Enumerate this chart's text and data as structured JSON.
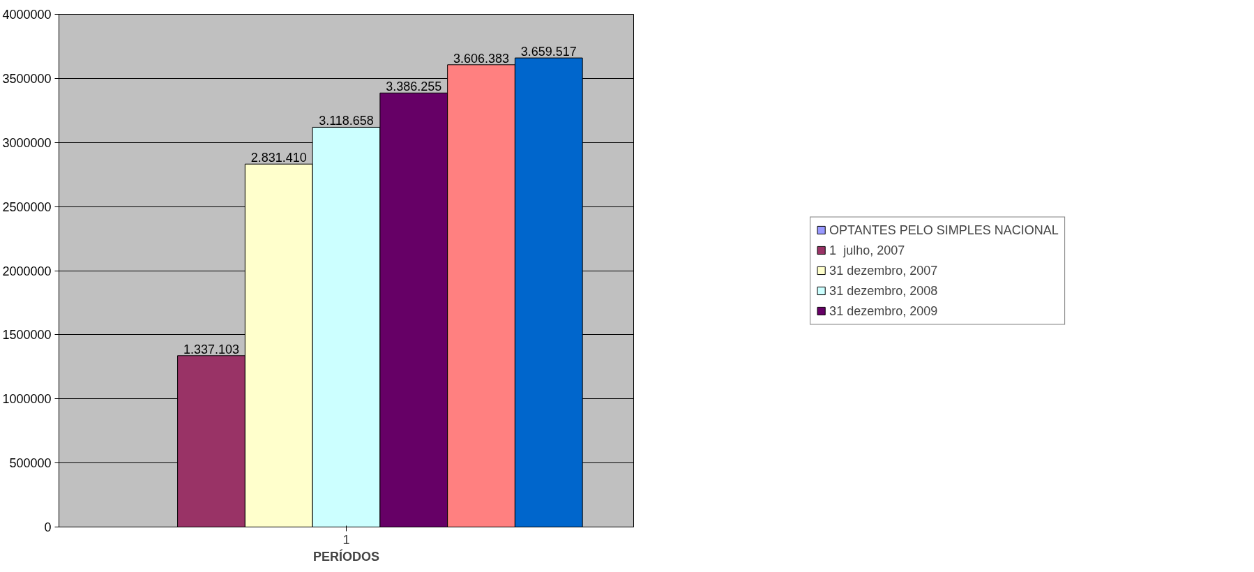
{
  "chart_data": {
    "type": "bar",
    "xlabel": "PERÍODOS",
    "categories": [
      "1"
    ],
    "series": [
      {
        "name": "OPTANTES PELO SIMPLES NACIONAL",
        "color": "#9999ff",
        "values": [
          null
        ],
        "value_labels": [
          null
        ]
      },
      {
        "name": "1  julho, 2007",
        "color": "#993366",
        "values": [
          1337103
        ],
        "value_labels": [
          "1.337.103"
        ]
      },
      {
        "name": "31 dezembro, 2007",
        "color": "#ffffcc",
        "values": [
          2831410
        ],
        "value_labels": [
          "2.831.410"
        ]
      },
      {
        "name": "31 dezembro, 2008",
        "color": "#ccffff",
        "values": [
          3118658
        ],
        "value_labels": [
          "3.118.658"
        ]
      },
      {
        "name": "31 dezembro, 2009",
        "color": "#660066",
        "values": [
          3386255
        ],
        "value_labels": [
          "3.386.255"
        ]
      },
      {
        "color": "#ff8080",
        "values": [
          3606383
        ],
        "value_labels": [
          "3.606.383"
        ]
      },
      {
        "color": "#0066cc",
        "values": [
          3659517
        ],
        "value_labels": [
          "3.659.517"
        ]
      }
    ],
    "ylim": [
      0,
      4000000
    ],
    "yticks": [
      0,
      500000,
      1000000,
      1500000,
      2000000,
      2500000,
      3000000,
      3500000,
      4000000
    ],
    "grid": "y",
    "legend": "right"
  }
}
